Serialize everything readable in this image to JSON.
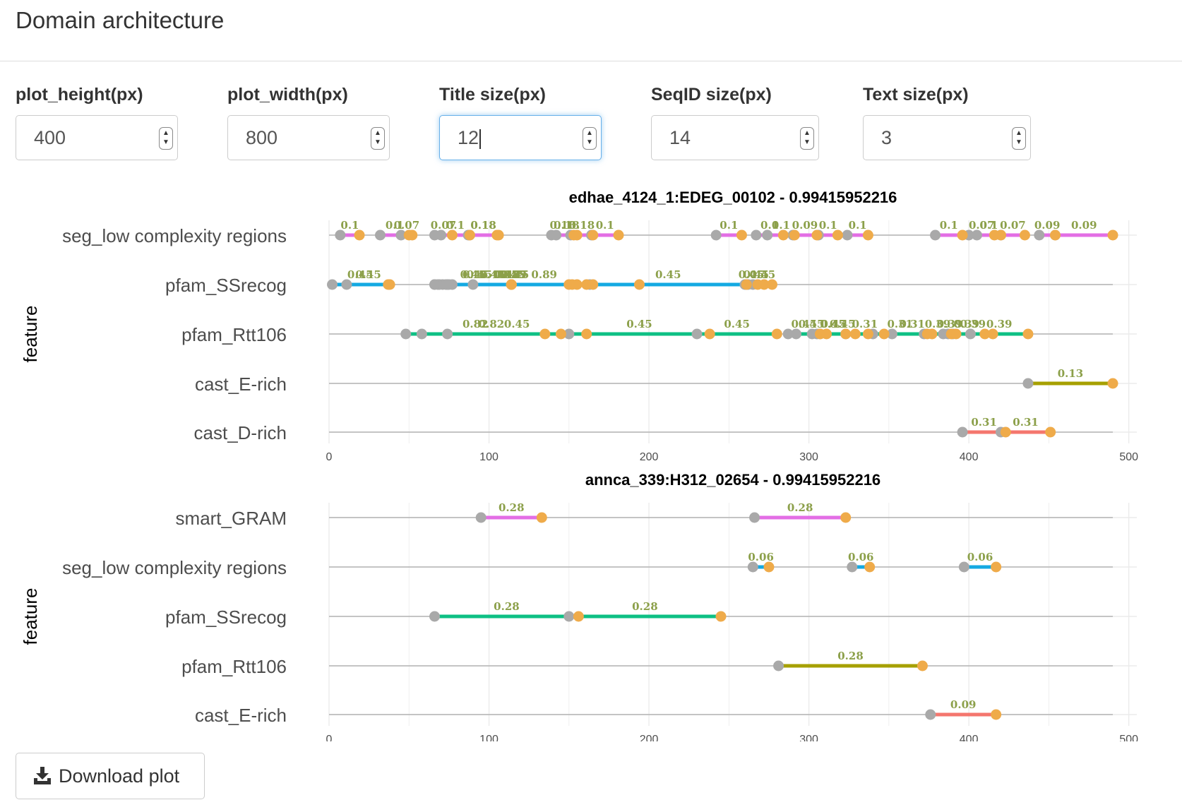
{
  "page": {
    "title": "Domain architecture"
  },
  "controls": [
    {
      "label": "plot_height(px)",
      "value": "400"
    },
    {
      "label": "plot_width(px)",
      "value": "800"
    },
    {
      "label": "Title size(px)",
      "value": "12"
    },
    {
      "label": "SeqID size(px)",
      "value": "14"
    },
    {
      "label": "Text size(px)",
      "value": "3"
    }
  ],
  "colors": {
    "magenta": "#e36ee5",
    "blue": "#14a9e2",
    "green": "#0ec084",
    "olive": "#a6a000",
    "red": "#f4766e",
    "start_point": "#a9a9a9",
    "end_point": "#efab4a",
    "label_text": "#8ca04a",
    "baseline": "#b3b3b3",
    "grid": "#ebebeb"
  },
  "chart_data": [
    {
      "type": "domain_architecture",
      "title": "edhae_4124_1:EDEG_00102 - 0.99415952216",
      "ylabel": "feature",
      "xlim": [
        0,
        505
      ],
      "x_ticks": [
        0,
        100,
        200,
        300,
        400,
        500
      ],
      "seq_length": 490,
      "features": [
        {
          "name": "seg_low complexity regions",
          "color": "magenta",
          "segments": [
            [
              7,
              19,
              "0.1"
            ],
            [
              32,
              50,
              "0.1"
            ],
            [
              45,
              52,
              "0.07"
            ],
            [
              66,
              77,
              "0.07"
            ],
            [
              70,
              88,
              "0.1"
            ],
            [
              88,
              105,
              "0.18"
            ],
            [
              87,
              106,
              "0.18"
            ],
            [
              139,
              153,
              "0.18"
            ],
            [
              142,
              155,
              "0.18"
            ],
            [
              151,
              165,
              "0.18"
            ],
            [
              164,
              181,
              "0.1"
            ],
            [
              242,
              258,
              "0.1"
            ],
            [
              267,
              284,
              "0.1"
            ],
            [
              274,
              291,
              "0.1"
            ],
            [
              290,
              305,
              "0.09"
            ],
            [
              306,
              318,
              "0.1"
            ],
            [
              324,
              337,
              "0.1"
            ],
            [
              379,
              396,
              "0.1"
            ],
            [
              400,
              416,
              "0.07"
            ],
            [
              405,
              420,
              "0.1"
            ],
            [
              420,
              435,
              "0.07"
            ],
            [
              444,
              454,
              "0.09"
            ],
            [
              454,
              490,
              "0.09"
            ]
          ]
        },
        {
          "name": "pfam_SSrecog",
          "color": "blue",
          "segments": [
            [
              2,
              37,
              "0.45"
            ],
            [
              11,
              38,
              "0.45"
            ],
            [
              66,
              114,
              "0.45"
            ],
            [
              69,
              114,
              "0.45"
            ],
            [
              74,
              114,
              "0.45"
            ],
            [
              90,
              114,
              "0.45"
            ],
            [
              71,
              150,
              "0.45"
            ],
            [
              77,
              152,
              "0.45"
            ],
            [
              68,
              155,
              "0.45"
            ],
            [
              73,
              161,
              "0.45"
            ],
            [
              66,
              165,
              "0.89"
            ],
            [
              75,
              194,
              "0.89"
            ],
            [
              163,
              261,
              "0.45"
            ],
            [
              260,
              268,
              "0.45"
            ],
            [
              262,
              272,
              "0.45"
            ],
            [
              265,
              277,
              "0.45"
            ]
          ]
        },
        {
          "name": "pfam_Rtt106",
          "color": "green",
          "segments": [
            [
              48,
              135,
              "0.82"
            ],
            [
              58,
              145,
              "0.82"
            ],
            [
              74,
              161,
              "0.45"
            ],
            [
              150,
              238,
              "0.45"
            ],
            [
              230,
              280,
              "0.45"
            ],
            [
              287,
              307,
              "0.45"
            ],
            [
              292,
              311,
              "0.45"
            ],
            [
              307,
              323,
              "0.45"
            ],
            [
              302,
              329,
              "0.45"
            ],
            [
              305,
              337,
              "0.45"
            ],
            [
              323,
              347,
              "0.31"
            ],
            [
              340,
              374,
              "0.31"
            ],
            [
              352,
              377,
              "0.31"
            ],
            [
              372,
              389,
              "0.39"
            ],
            [
              384,
              392,
              "0.39"
            ],
            [
              387,
              410,
              "0.39"
            ],
            [
              390,
              415,
              "0.39"
            ],
            [
              401,
              437,
              "0.39"
            ]
          ]
        },
        {
          "name": "cast_E-rich",
          "color": "olive",
          "segments": [
            [
              437,
              490,
              "0.13"
            ]
          ]
        },
        {
          "name": "cast_D-rich",
          "color": "red",
          "segments": [
            [
              396,
              423,
              "0.31"
            ],
            [
              420,
              451,
              "0.31"
            ]
          ]
        }
      ]
    },
    {
      "type": "domain_architecture",
      "title": "annca_339:H312_02654 - 0.99415952216",
      "ylabel": "feature",
      "xlim": [
        0,
        505
      ],
      "x_ticks": [
        0,
        100,
        200,
        300,
        400,
        500
      ],
      "seq_length": 490,
      "features": [
        {
          "name": "smart_GRAM",
          "color": "magenta",
          "segments": [
            [
              95,
              133,
              "0.28"
            ],
            [
              266,
              323,
              "0.28"
            ]
          ]
        },
        {
          "name": "seg_low complexity regions",
          "color": "blue",
          "segments": [
            [
              265,
              275,
              "0.06"
            ],
            [
              327,
              338,
              "0.06"
            ],
            [
              397,
              417,
              "0.06"
            ]
          ]
        },
        {
          "name": "pfam_SSrecog",
          "color": "green",
          "segments": [
            [
              66,
              156,
              "0.28"
            ],
            [
              150,
              245,
              "0.28"
            ]
          ]
        },
        {
          "name": "pfam_Rtt106",
          "color": "olive",
          "segments": [
            [
              281,
              371,
              "0.28"
            ]
          ]
        },
        {
          "name": "cast_E-rich",
          "color": "red",
          "segments": [
            [
              376,
              417,
              "0.09"
            ]
          ]
        }
      ]
    }
  ],
  "download": {
    "label": "Download plot",
    "icon": "download-icon"
  }
}
